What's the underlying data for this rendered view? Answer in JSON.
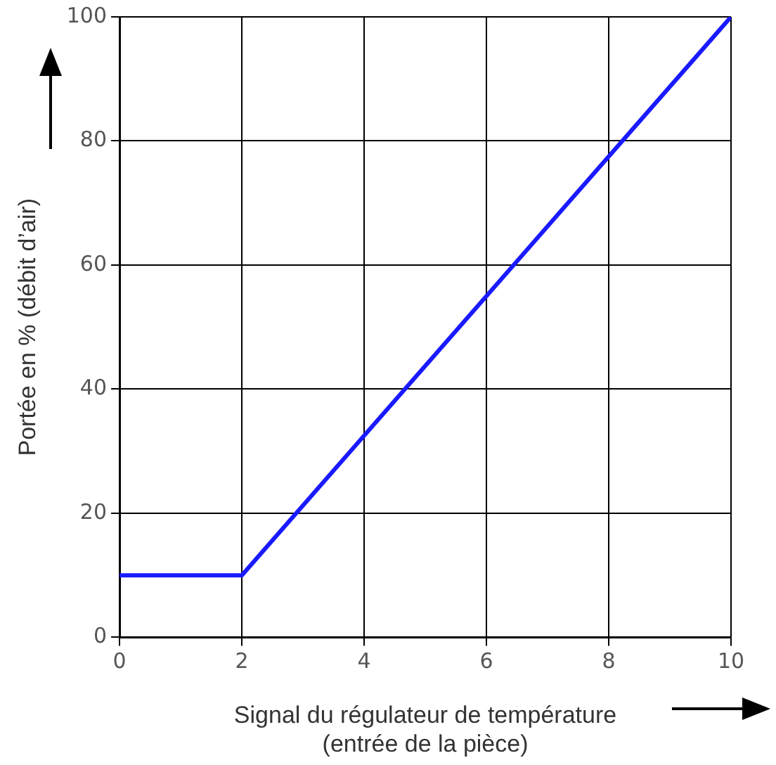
{
  "chart_data": {
    "type": "line",
    "xlabel": "Signal du régulateur de température\n(entrée de la pièce)",
    "ylabel": "Portée en % (débit d’air)",
    "x": [
      0,
      2,
      10
    ],
    "series": [
      {
        "color": "#1a1aff",
        "values": [
          10,
          10,
          100
        ]
      }
    ],
    "xlim": [
      0,
      10
    ],
    "xticks": [
      0,
      2,
      4,
      6,
      8,
      10
    ],
    "ylim": [
      0,
      100
    ],
    "yticks": [
      0,
      20,
      40,
      60,
      80,
      100
    ],
    "grid": true,
    "legend": false,
    "marker": "none",
    "line_style": "solid"
  }
}
